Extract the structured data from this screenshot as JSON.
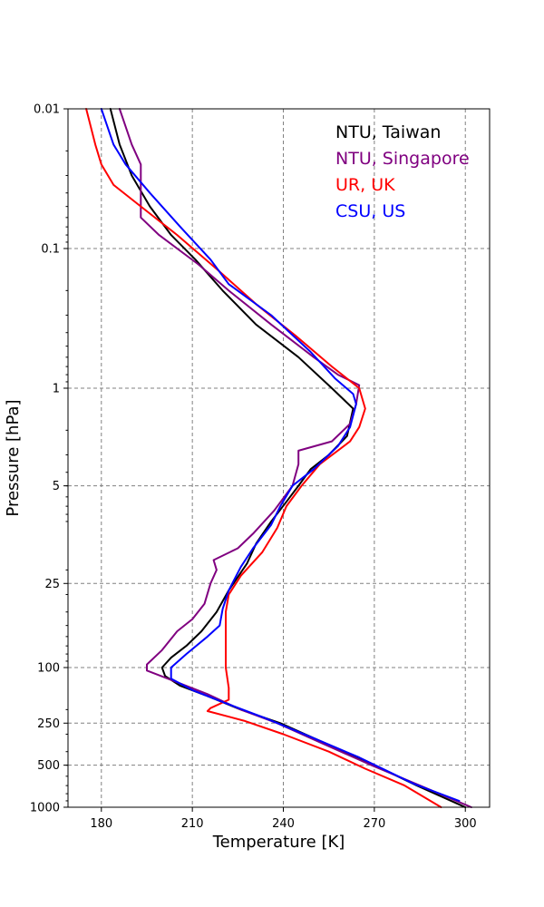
{
  "chart_data": {
    "type": "line",
    "xlabel": "Temperature [K]",
    "ylabel": "Pressure [hPa]",
    "xlim": [
      169,
      308
    ],
    "ylim": [
      1000,
      0.01
    ],
    "yscale": "log",
    "grid": true,
    "legend_placement": "top-right",
    "x_ticks": [
      180,
      210,
      240,
      270,
      300
    ],
    "y_ticks": [
      0.01,
      0.1,
      1,
      5,
      25,
      100,
      250,
      500,
      1000
    ],
    "series": [
      {
        "name": "NTU, Taiwan",
        "color": "#000000",
        "points": [
          [
            183,
            0.01
          ],
          [
            186,
            0.018
          ],
          [
            190,
            0.03
          ],
          [
            196,
            0.05
          ],
          [
            203,
            0.08
          ],
          [
            211,
            0.12
          ],
          [
            220,
            0.2
          ],
          [
            231,
            0.35
          ],
          [
            245,
            0.6
          ],
          [
            256,
            1.0
          ],
          [
            263,
            1.4
          ],
          [
            261,
            2.2
          ],
          [
            255,
            3.0
          ],
          [
            249,
            3.8
          ],
          [
            245,
            5.0
          ],
          [
            241,
            6.5
          ],
          [
            236,
            9.0
          ],
          [
            231,
            13
          ],
          [
            228,
            18
          ],
          [
            222,
            28
          ],
          [
            218,
            40
          ],
          [
            213,
            55
          ],
          [
            208,
            70
          ],
          [
            203,
            85
          ],
          [
            200,
            100
          ],
          [
            201,
            115
          ],
          [
            206,
            135
          ],
          [
            215,
            160
          ],
          [
            226,
            200
          ],
          [
            239,
            250
          ],
          [
            254,
            350
          ],
          [
            270,
            500
          ],
          [
            284,
            700
          ],
          [
            300,
            1000
          ]
        ]
      },
      {
        "name": "NTU, Singapore",
        "color": "#800080",
        "points": [
          [
            186,
            0.01
          ],
          [
            190,
            0.018
          ],
          [
            193,
            0.025
          ],
          [
            193,
            0.04
          ],
          [
            193,
            0.06
          ],
          [
            199,
            0.08
          ],
          [
            212,
            0.13
          ],
          [
            222,
            0.2
          ],
          [
            236,
            0.35
          ],
          [
            250,
            0.6
          ],
          [
            258,
            0.8
          ],
          [
            265,
            0.95
          ],
          [
            264,
            1.3
          ],
          [
            262,
            1.8
          ],
          [
            256,
            2.4
          ],
          [
            245,
            2.8
          ],
          [
            245,
            3.5
          ],
          [
            243,
            5.0
          ],
          [
            237,
            7.5
          ],
          [
            230,
            11
          ],
          [
            225,
            14
          ],
          [
            217,
            17
          ],
          [
            218,
            20
          ],
          [
            216,
            25
          ],
          [
            214,
            35
          ],
          [
            210,
            45
          ],
          [
            205,
            55
          ],
          [
            200,
            75
          ],
          [
            195,
            95
          ],
          [
            195,
            105
          ],
          [
            204,
            125
          ],
          [
            215,
            155
          ],
          [
            226,
            200
          ],
          [
            238,
            250
          ],
          [
            253,
            350
          ],
          [
            269,
            500
          ],
          [
            285,
            700
          ],
          [
            302,
            1000
          ]
        ]
      },
      {
        "name": "UR, UK",
        "color": "#ff0000",
        "points": [
          [
            175,
            0.01
          ],
          [
            178,
            0.018
          ],
          [
            180,
            0.025
          ],
          [
            184,
            0.035
          ],
          [
            193,
            0.05
          ],
          [
            205,
            0.08
          ],
          [
            218,
            0.14
          ],
          [
            231,
            0.25
          ],
          [
            244,
            0.42
          ],
          [
            256,
            0.7
          ],
          [
            265,
            1.0
          ],
          [
            267,
            1.4
          ],
          [
            265,
            1.9
          ],
          [
            262,
            2.4
          ],
          [
            252,
            3.5
          ],
          [
            246,
            5.0
          ],
          [
            241,
            7.0
          ],
          [
            238,
            10
          ],
          [
            233,
            15
          ],
          [
            226,
            22
          ],
          [
            222,
            30
          ],
          [
            221,
            40
          ],
          [
            221,
            60
          ],
          [
            221,
            100
          ],
          [
            222,
            140
          ],
          [
            222,
            170
          ],
          [
            216,
            195
          ],
          [
            215,
            205
          ],
          [
            227,
            240
          ],
          [
            240,
            300
          ],
          [
            255,
            400
          ],
          [
            267,
            530
          ],
          [
            280,
            700
          ],
          [
            292,
            1000
          ]
        ]
      },
      {
        "name": "CSU, US",
        "color": "#0000ff",
        "points": [
          [
            180,
            0.01
          ],
          [
            184,
            0.018
          ],
          [
            188,
            0.025
          ],
          [
            196,
            0.04
          ],
          [
            206,
            0.07
          ],
          [
            216,
            0.12
          ],
          [
            222,
            0.18
          ],
          [
            236,
            0.3
          ],
          [
            249,
            0.55
          ],
          [
            257,
            0.85
          ],
          [
            263,
            1.1
          ],
          [
            264,
            1.3
          ],
          [
            262,
            1.9
          ],
          [
            258,
            2.6
          ],
          [
            250,
            3.8
          ],
          [
            243,
            5.0
          ],
          [
            239,
            7.0
          ],
          [
            236,
            9.5
          ],
          [
            230,
            14
          ],
          [
            226,
            19
          ],
          [
            222,
            28
          ],
          [
            220,
            38
          ],
          [
            219,
            50
          ],
          [
            215,
            60
          ],
          [
            208,
            80
          ],
          [
            203,
            100
          ],
          [
            203,
            120
          ],
          [
            210,
            145
          ],
          [
            221,
            180
          ],
          [
            234,
            230
          ],
          [
            250,
            320
          ],
          [
            265,
            440
          ],
          [
            283,
            680
          ],
          [
            298,
            900
          ]
        ]
      }
    ]
  }
}
